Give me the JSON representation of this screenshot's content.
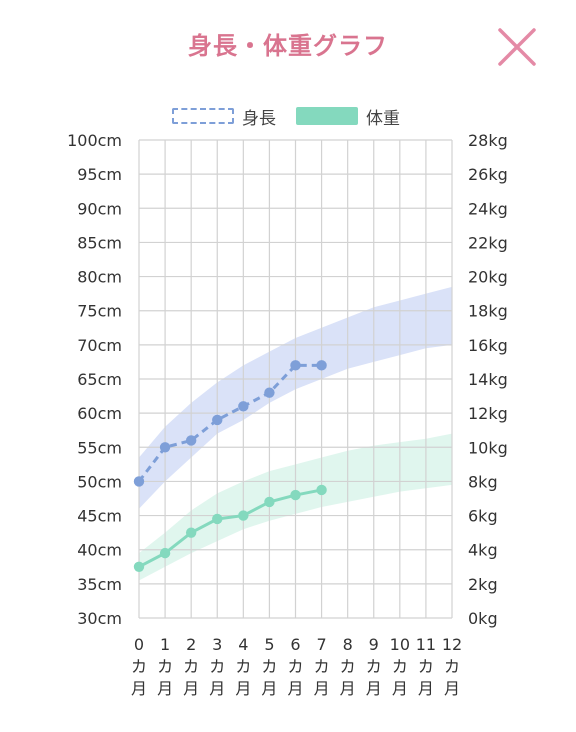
{
  "header": {
    "title": "身長・体重グラフ",
    "title_color": "#d9748f",
    "close_icon": "close-icon",
    "close_color": "#e48aa6"
  },
  "legend": {
    "height_label": "身長",
    "weight_label": "体重"
  },
  "chart_data": {
    "type": "line",
    "x": [
      0,
      1,
      2,
      3,
      4,
      5,
      6,
      7,
      8,
      9,
      10,
      11,
      12
    ],
    "xtick_labels": [
      "0カ月",
      "1カ月",
      "2カ月",
      "3カ月",
      "4カ月",
      "5カ月",
      "6カ月",
      "7カ月",
      "8カ月",
      "9カ月",
      "10カ月",
      "11カ月",
      "12カ月"
    ],
    "left_axis": {
      "unit": "cm",
      "ylim": [
        30,
        100
      ],
      "ticks": [
        "30cm",
        "35cm",
        "40cm",
        "45cm",
        "50cm",
        "55cm",
        "60cm",
        "65cm",
        "70cm",
        "75cm",
        "80cm",
        "85cm",
        "90cm",
        "95cm",
        "100cm"
      ]
    },
    "right_axis": {
      "unit": "kg",
      "ylim": [
        0,
        28
      ],
      "ticks": [
        "0kg",
        "2kg",
        "4kg",
        "6kg",
        "8kg",
        "10kg",
        "12kg",
        "14kg",
        "16kg",
        "18kg",
        "20kg",
        "22kg",
        "24kg",
        "26kg",
        "28kg"
      ]
    },
    "grid": true,
    "series": [
      {
        "name": "身長",
        "axis": "left",
        "style": "dashed",
        "color": "#7e9fd8",
        "x": [
          0,
          1,
          2,
          3,
          4,
          5,
          6,
          7
        ],
        "values": [
          50,
          55,
          56,
          59,
          61,
          63,
          67,
          67
        ]
      },
      {
        "name": "体重",
        "axis": "right",
        "style": "solid",
        "color": "#84d9be",
        "x": [
          0,
          1,
          2,
          3,
          4,
          5,
          6,
          7
        ],
        "values": [
          3.0,
          3.8,
          5.0,
          5.8,
          6.0,
          6.8,
          7.2,
          7.5
        ]
      }
    ],
    "bands": [
      {
        "axis": "left",
        "color": "#cdd8f5",
        "x": [
          0,
          1,
          2,
          3,
          4,
          5,
          6,
          7,
          8,
          9,
          10,
          11,
          12
        ],
        "upper": [
          53.5,
          58.0,
          61.5,
          64.5,
          67.0,
          69.0,
          71.0,
          72.5,
          74.0,
          75.5,
          76.5,
          77.5,
          78.5
        ],
        "lower": [
          46.0,
          50.0,
          53.5,
          57.0,
          59.0,
          61.5,
          63.5,
          65.0,
          66.5,
          67.5,
          68.5,
          69.5,
          70.0
        ]
      },
      {
        "axis": "right",
        "color": "#d5f3e8",
        "x": [
          0,
          1,
          2,
          3,
          4,
          5,
          6,
          7,
          8,
          9,
          10,
          11,
          12
        ],
        "upper": [
          3.8,
          5.0,
          6.3,
          7.3,
          8.0,
          8.6,
          9.0,
          9.4,
          9.8,
          10.1,
          10.3,
          10.5,
          10.8
        ],
        "lower": [
          2.2,
          3.0,
          3.8,
          4.5,
          5.2,
          5.7,
          6.1,
          6.5,
          6.8,
          7.1,
          7.4,
          7.6,
          7.8
        ]
      }
    ]
  }
}
